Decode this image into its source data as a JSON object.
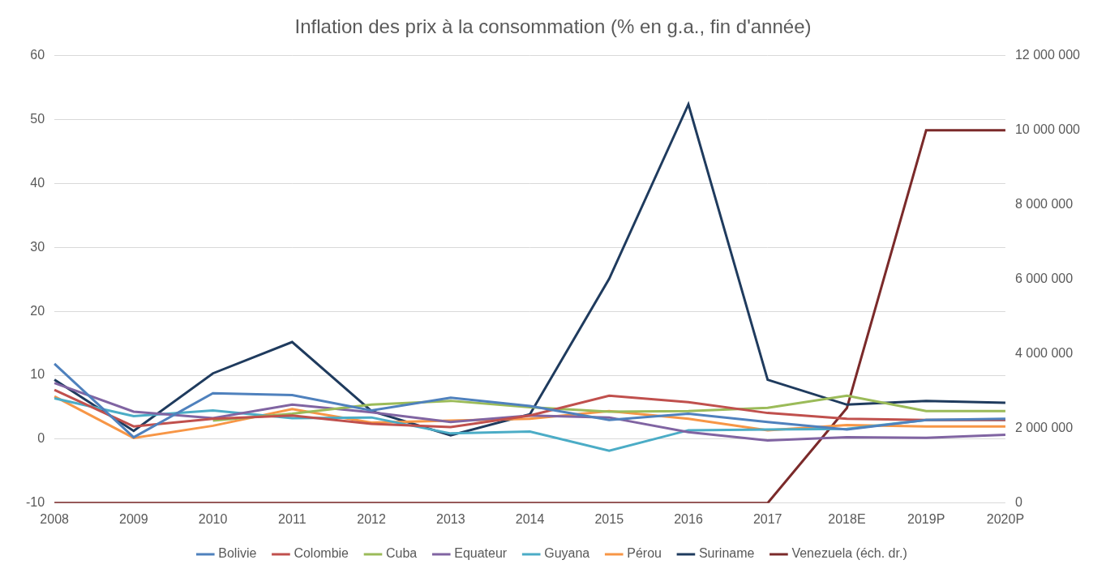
{
  "chart_data": {
    "type": "line",
    "title": "Inflation des prix à la consommation (% en g.a., fin d'année)",
    "categories": [
      "2008",
      "2009",
      "2010",
      "2011",
      "2012",
      "2013",
      "2014",
      "2015",
      "2016",
      "2017",
      "2018E",
      "2019P",
      "2020P"
    ],
    "ylim": [
      -10,
      60
    ],
    "yticks": [
      -10,
      0,
      10,
      20,
      30,
      40,
      50,
      60
    ],
    "y2lim": [
      0,
      12000000
    ],
    "y2ticks": [
      0,
      {
        "value": 2000000,
        "label": "2 000 000"
      },
      {
        "value": 4000000,
        "label": "4 000 000"
      },
      {
        "value": 6000000,
        "label": "6 000 000"
      },
      {
        "value": 8000000,
        "label": "8 000 000"
      },
      {
        "value": 10000000,
        "label": "10 000 000"
      },
      {
        "value": 12000000,
        "label": "12 000 000"
      }
    ],
    "grid": true,
    "legend": "bottom",
    "series": [
      {
        "name": "Bolivie",
        "color": "#4f81bd",
        "values": [
          11.8,
          0.3,
          7.2,
          6.9,
          4.5,
          6.5,
          5.2,
          3.0,
          4.0,
          2.7,
          1.5,
          3.0,
          3.2
        ]
      },
      {
        "name": "Colombie",
        "color": "#c0504d",
        "values": [
          7.7,
          2.0,
          3.2,
          3.7,
          2.4,
          1.9,
          3.7,
          6.8,
          5.8,
          4.1,
          3.2,
          3.0,
          3.0
        ]
      },
      {
        "name": "Cuba",
        "color": "#9bbb59",
        "values": [
          null,
          null,
          2.9,
          4.0,
          5.4,
          6.0,
          5.0,
          4.3,
          4.4,
          4.9,
          6.8,
          4.4,
          4.4
        ]
      },
      {
        "name": "Equateur",
        "color": "#8064a2",
        "values": [
          8.8,
          4.3,
          3.3,
          5.4,
          4.2,
          2.7,
          3.7,
          3.4,
          1.1,
          -0.2,
          0.3,
          0.2,
          0.7
        ]
      },
      {
        "name": "Guyana",
        "color": "#4bacc6",
        "values": [
          6.4,
          3.6,
          4.5,
          3.3,
          3.4,
          0.9,
          1.2,
          -1.8,
          1.4,
          1.5,
          1.6,
          3.0,
          3.0
        ]
      },
      {
        "name": "Pérou",
        "color": "#f79646",
        "values": [
          6.7,
          0.2,
          2.1,
          4.7,
          2.6,
          2.9,
          3.2,
          4.4,
          3.2,
          1.4,
          2.2,
          2.0,
          2.0
        ]
      },
      {
        "name": "Suriname",
        "color": "#1f3b5e",
        "values": [
          9.3,
          1.3,
          10.3,
          15.2,
          4.4,
          0.6,
          3.9,
          25.1,
          52.4,
          9.3,
          5.4,
          6.0,
          5.7
        ]
      },
      {
        "name": "Venezuela (éch. dr.)",
        "color": "#7b2a2a",
        "axis": "y2",
        "values": [
          0,
          0,
          0,
          0,
          0,
          0,
          0,
          0,
          0,
          0,
          2550000,
          10000000,
          10000000
        ]
      }
    ]
  }
}
